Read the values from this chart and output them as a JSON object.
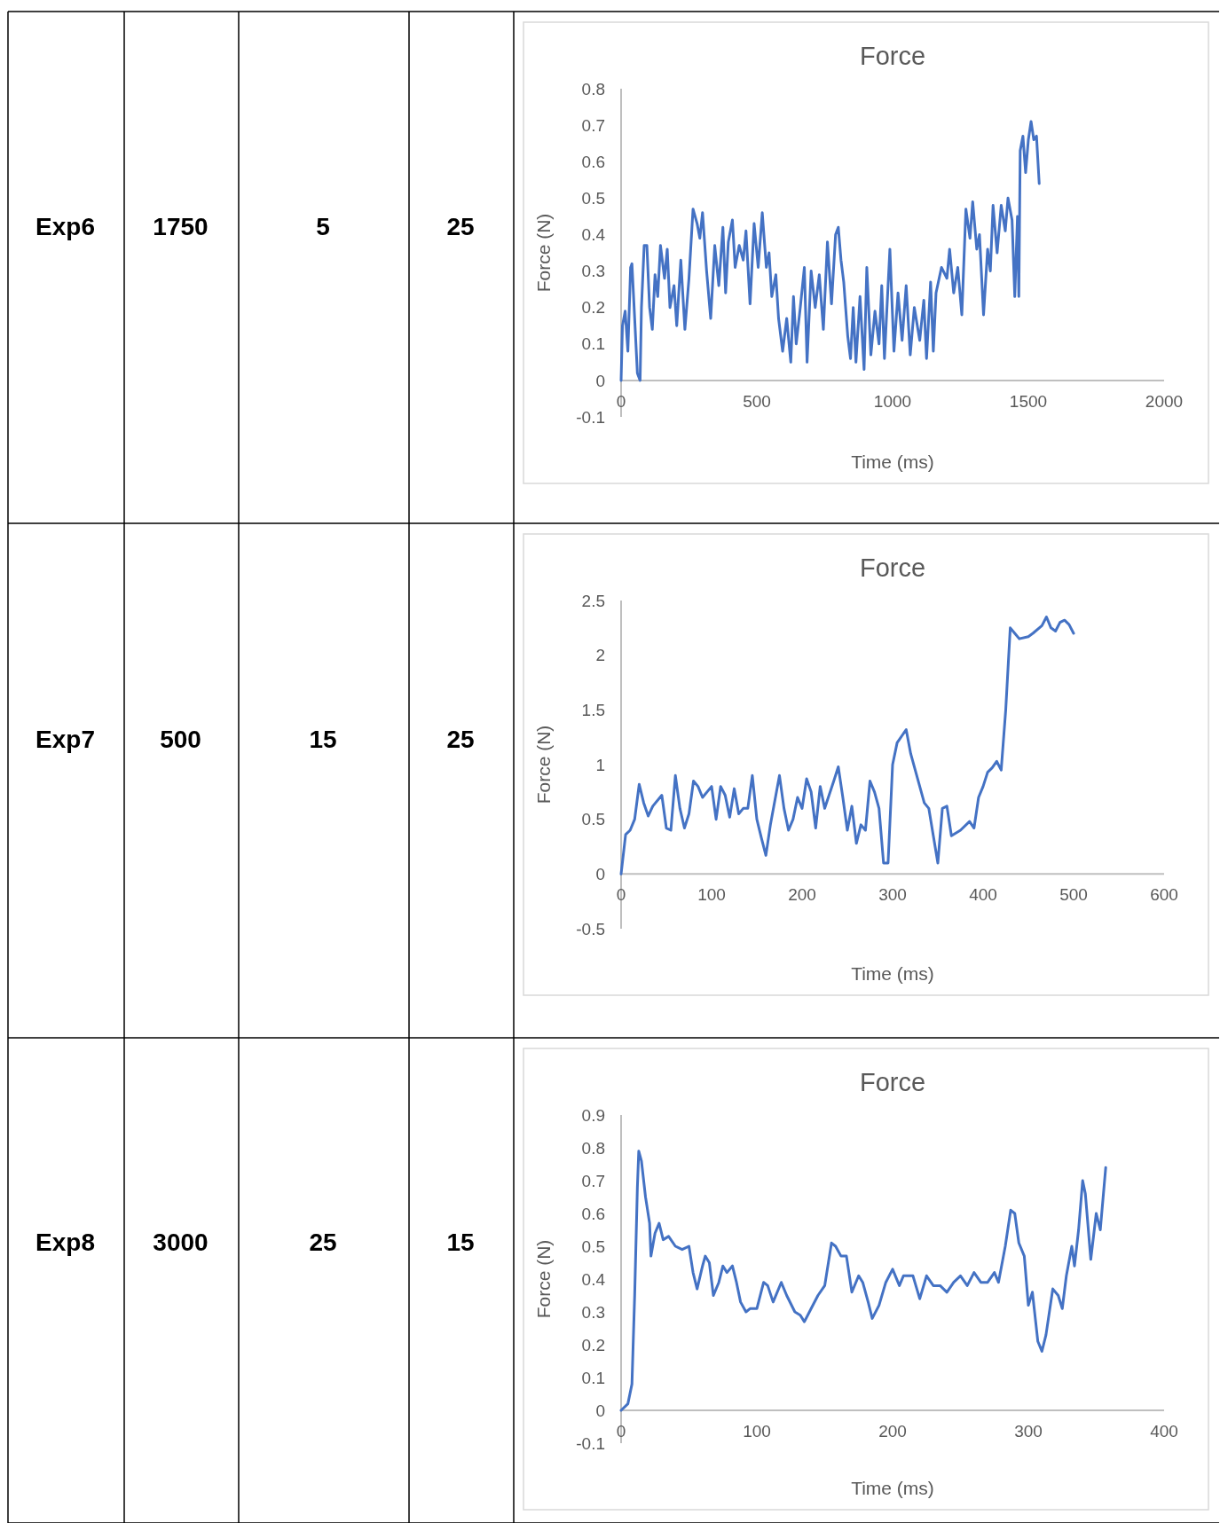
{
  "chart_data": [
    {
      "type": "line",
      "title": "Force",
      "xlabel": "Time (ms)",
      "ylabel": "Force (N)",
      "annotations": [
        "Exp6",
        "1750",
        "5",
        "25"
      ],
      "xlim": [
        0,
        2000
      ],
      "xticks": [
        0,
        500,
        1000,
        1500,
        2000
      ],
      "ylim": [
        -0.1,
        0.8
      ],
      "yticks": [
        -0.1,
        0,
        0.1,
        0.2,
        0.3,
        0.4,
        0.5,
        0.6,
        0.7,
        0.8
      ],
      "grid": false,
      "marker": "none",
      "line_style": "solid",
      "series": [
        {
          "color": "#4472c4",
          "x": [
            0,
            5,
            15,
            25,
            35,
            40,
            50,
            60,
            70,
            75,
            85,
            95,
            105,
            115,
            125,
            135,
            145,
            160,
            170,
            180,
            195,
            205,
            220,
            235,
            250,
            265,
            280,
            290,
            300,
            315,
            330,
            345,
            360,
            375,
            385,
            395,
            410,
            420,
            435,
            450,
            460,
            475,
            490,
            505,
            520,
            535,
            545,
            555,
            570,
            580,
            595,
            610,
            625,
            635,
            645,
            660,
            675,
            685,
            700,
            715,
            730,
            745,
            760,
            775,
            790,
            800,
            810,
            820,
            835,
            845,
            855,
            865,
            880,
            895,
            905,
            920,
            935,
            950,
            960,
            970,
            990,
            1005,
            1020,
            1035,
            1050,
            1065,
            1080,
            1100,
            1115,
            1125,
            1140,
            1150,
            1160,
            1180,
            1200,
            1210,
            1225,
            1240,
            1255,
            1270,
            1285,
            1295,
            1310,
            1320,
            1335,
            1350,
            1360,
            1370,
            1385,
            1400,
            1415,
            1425,
            1440,
            1450,
            1460,
            1465,
            1470,
            1480,
            1490,
            1500,
            1510,
            1520,
            1530,
            1540
          ],
          "values": [
            0,
            0.15,
            0.19,
            0.08,
            0.31,
            0.32,
            0.17,
            0.02,
            0,
            0.2,
            0.37,
            0.37,
            0.2,
            0.14,
            0.29,
            0.23,
            0.37,
            0.28,
            0.36,
            0.2,
            0.26,
            0.15,
            0.33,
            0.14,
            0.28,
            0.47,
            0.43,
            0.39,
            0.46,
            0.3,
            0.17,
            0.37,
            0.26,
            0.42,
            0.24,
            0.38,
            0.44,
            0.31,
            0.37,
            0.33,
            0.41,
            0.21,
            0.43,
            0.31,
            0.46,
            0.31,
            0.35,
            0.23,
            0.29,
            0.17,
            0.08,
            0.17,
            0.05,
            0.23,
            0.1,
            0.2,
            0.31,
            0.05,
            0.3,
            0.2,
            0.29,
            0.14,
            0.38,
            0.21,
            0.4,
            0.42,
            0.33,
            0.27,
            0.12,
            0.06,
            0.2,
            0.05,
            0.23,
            0.03,
            0.31,
            0.07,
            0.19,
            0.1,
            0.26,
            0.06,
            0.36,
            0.08,
            0.24,
            0.11,
            0.26,
            0.07,
            0.2,
            0.11,
            0.22,
            0.06,
            0.27,
            0.08,
            0.24,
            0.31,
            0.28,
            0.36,
            0.24,
            0.31,
            0.18,
            0.47,
            0.39,
            0.49,
            0.36,
            0.4,
            0.18,
            0.36,
            0.3,
            0.48,
            0.35,
            0.48,
            0.41,
            0.5,
            0.44,
            0.23,
            0.45,
            0.23,
            0.63,
            0.67,
            0.57,
            0.66,
            0.71,
            0.66,
            0.67,
            0.54
          ]
        }
      ]
    },
    {
      "type": "line",
      "title": "Force",
      "xlabel": "Time (ms)",
      "ylabel": "Force (N)",
      "annotations": [
        "Exp7",
        "500",
        "15",
        "25"
      ],
      "xlim": [
        0,
        600
      ],
      "xticks": [
        0,
        100,
        200,
        300,
        400,
        500,
        600
      ],
      "ylim": [
        -0.5,
        2.5
      ],
      "yticks": [
        -0.5,
        0,
        0.5,
        1,
        1.5,
        2,
        2.5
      ],
      "grid": false,
      "marker": "none",
      "line_style": "solid",
      "series": [
        {
          "color": "#4472c4",
          "x": [
            0,
            5,
            10,
            15,
            20,
            25,
            30,
            35,
            45,
            50,
            55,
            60,
            65,
            70,
            75,
            80,
            85,
            90,
            100,
            105,
            110,
            115,
            120,
            125,
            130,
            135,
            140,
            145,
            150,
            155,
            160,
            165,
            175,
            180,
            185,
            190,
            195,
            200,
            205,
            210,
            215,
            220,
            225,
            235,
            240,
            245,
            250,
            255,
            260,
            265,
            270,
            275,
            280,
            285,
            290,
            295,
            300,
            305,
            315,
            320,
            325,
            335,
            340,
            345,
            350,
            355,
            360,
            365,
            375,
            385,
            390,
            395,
            400,
            405,
            410,
            415,
            420,
            425,
            430,
            435,
            440,
            450,
            455,
            465,
            470,
            475,
            480,
            485,
            490,
            495,
            500
          ],
          "values": [
            0,
            0.36,
            0.4,
            0.5,
            0.82,
            0.65,
            0.53,
            0.62,
            0.72,
            0.42,
            0.4,
            0.9,
            0.6,
            0.42,
            0.55,
            0.85,
            0.8,
            0.7,
            0.8,
            0.5,
            0.8,
            0.72,
            0.52,
            0.78,
            0.55,
            0.6,
            0.6,
            0.9,
            0.5,
            0.33,
            0.17,
            0.45,
            0.9,
            0.6,
            0.4,
            0.5,
            0.7,
            0.6,
            0.87,
            0.75,
            0.42,
            0.8,
            0.6,
            0.85,
            0.98,
            0.7,
            0.4,
            0.62,
            0.28,
            0.45,
            0.4,
            0.85,
            0.75,
            0.6,
            0.1,
            0.1,
            1.0,
            1.2,
            1.32,
            1.1,
            0.95,
            0.65,
            0.6,
            0.35,
            0.1,
            0.6,
            0.62,
            0.35,
            0.4,
            0.48,
            0.42,
            0.7,
            0.8,
            0.93,
            0.97,
            1.03,
            0.95,
            1.5,
            2.25,
            2.2,
            2.15,
            2.17,
            2.2,
            2.27,
            2.35,
            2.25,
            2.22,
            2.3,
            2.32,
            2.28,
            2.2
          ]
        }
      ]
    },
    {
      "type": "line",
      "title": "Force",
      "xlabel": "Time (ms)",
      "ylabel": "Force (N)",
      "annotations": [
        "Exp8",
        "3000",
        "25",
        "15"
      ],
      "xlim": [
        0,
        400
      ],
      "xticks": [
        0,
        100,
        200,
        300,
        400
      ],
      "ylim": [
        -0.1,
        0.9
      ],
      "yticks": [
        -0.1,
        0,
        0.1,
        0.2,
        0.3,
        0.4,
        0.5,
        0.6,
        0.7,
        0.8,
        0.9
      ],
      "grid": false,
      "marker": "none",
      "line_style": "solid",
      "series": [
        {
          "color": "#4472c4",
          "x": [
            0,
            5,
            8,
            10,
            12,
            13,
            15,
            18,
            21,
            22,
            25,
            28,
            31,
            35,
            40,
            45,
            50,
            53,
            56,
            60,
            62,
            65,
            68,
            72,
            75,
            78,
            82,
            85,
            88,
            92,
            95,
            100,
            105,
            108,
            112,
            118,
            122,
            128,
            132,
            135,
            140,
            145,
            150,
            155,
            158,
            162,
            166,
            170,
            175,
            178,
            182,
            185,
            190,
            195,
            200,
            205,
            208,
            215,
            220,
            225,
            230,
            235,
            240,
            245,
            250,
            255,
            260,
            265,
            270,
            275,
            278,
            283,
            287,
            290,
            293,
            297,
            300,
            303,
            307,
            310,
            313,
            318,
            322,
            325,
            328,
            332,
            334,
            337,
            340,
            342,
            346,
            350,
            353,
            357
          ],
          "values": [
            0,
            0.02,
            0.08,
            0.35,
            0.68,
            0.79,
            0.76,
            0.65,
            0.57,
            0.47,
            0.54,
            0.57,
            0.52,
            0.53,
            0.5,
            0.49,
            0.5,
            0.42,
            0.37,
            0.44,
            0.47,
            0.45,
            0.35,
            0.39,
            0.44,
            0.42,
            0.44,
            0.39,
            0.33,
            0.3,
            0.31,
            0.31,
            0.39,
            0.38,
            0.33,
            0.39,
            0.35,
            0.3,
            0.29,
            0.27,
            0.31,
            0.35,
            0.38,
            0.51,
            0.5,
            0.47,
            0.47,
            0.36,
            0.41,
            0.39,
            0.33,
            0.28,
            0.32,
            0.39,
            0.43,
            0.38,
            0.41,
            0.41,
            0.34,
            0.41,
            0.38,
            0.38,
            0.36,
            0.39,
            0.41,
            0.38,
            0.42,
            0.39,
            0.39,
            0.42,
            0.39,
            0.5,
            0.61,
            0.6,
            0.51,
            0.47,
            0.32,
            0.36,
            0.21,
            0.18,
            0.23,
            0.37,
            0.35,
            0.31,
            0.41,
            0.5,
            0.44,
            0.55,
            0.7,
            0.66,
            0.46,
            0.6,
            0.55,
            0.74
          ]
        }
      ]
    }
  ]
}
